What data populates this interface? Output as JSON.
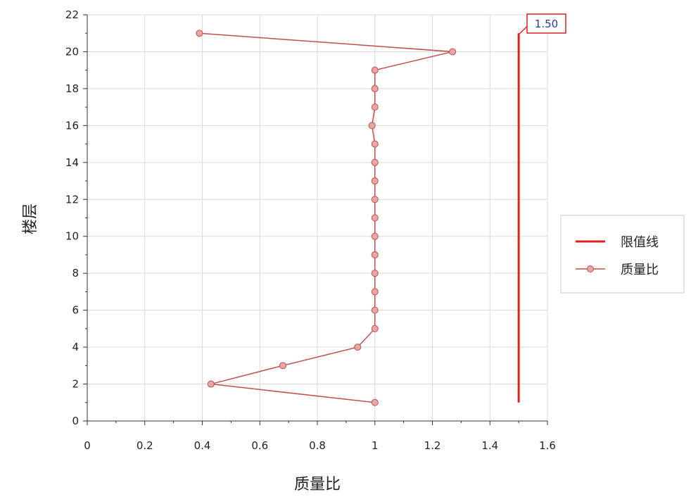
{
  "chart_data": {
    "type": "line",
    "title": "",
    "xlabel": "质量比",
    "ylabel": "楼层",
    "xlim": [
      0,
      1.6
    ],
    "ylim": [
      0,
      22
    ],
    "x_ticks": [
      "0",
      "0.2",
      "0.4",
      "0.6",
      "0.8",
      "1",
      "1.2",
      "1.4",
      "1.6"
    ],
    "y_ticks": [
      "0",
      "2",
      "4",
      "6",
      "8",
      "10",
      "12",
      "14",
      "16",
      "18",
      "20",
      "22"
    ],
    "grid": true,
    "legend_position": "right",
    "series": [
      {
        "name": "限值线",
        "color": "#e02020",
        "marker": "none",
        "points": [
          [
            1.5,
            1
          ],
          [
            1.5,
            21
          ]
        ]
      },
      {
        "name": "质量比",
        "color": "#c0504d",
        "marker": "circle",
        "points": [
          [
            1.0,
            1
          ],
          [
            0.43,
            2
          ],
          [
            0.68,
            3
          ],
          [
            0.94,
            4
          ],
          [
            1.0,
            5
          ],
          [
            1.0,
            6
          ],
          [
            1.0,
            7
          ],
          [
            1.0,
            8
          ],
          [
            1.0,
            9
          ],
          [
            1.0,
            10
          ],
          [
            1.0,
            11
          ],
          [
            1.0,
            12
          ],
          [
            1.0,
            13
          ],
          [
            1.0,
            14
          ],
          [
            1.0,
            15
          ],
          [
            0.99,
            16
          ],
          [
            1.0,
            17
          ],
          [
            1.0,
            18
          ],
          [
            1.0,
            19
          ],
          [
            1.27,
            20
          ],
          [
            0.39,
            21
          ]
        ]
      }
    ],
    "annotations": [
      {
        "text": "1.50",
        "x": 1.5,
        "y": 21
      }
    ]
  }
}
